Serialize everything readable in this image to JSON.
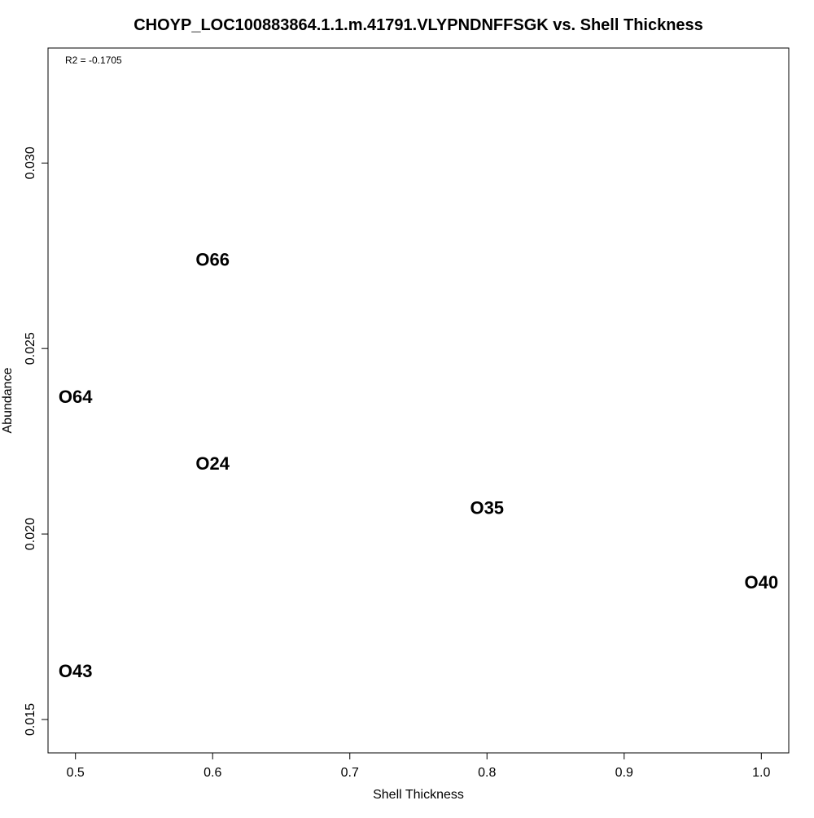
{
  "chart_data": {
    "type": "scatter",
    "title": "CHOYP_LOC100883864.1.1.m.41791.VLYPNDNFFSGK vs. Shell Thickness",
    "xlabel": "Shell Thickness",
    "ylabel": "Abundance",
    "xlim": [
      0.48,
      1.02
    ],
    "ylim": [
      0.0141,
      0.0331
    ],
    "xticks": [
      0.5,
      0.6,
      0.7,
      0.8,
      0.9,
      1.0
    ],
    "xtick_labels": [
      "0.5",
      "0.6",
      "0.7",
      "0.8",
      "0.9",
      "1.0"
    ],
    "yticks": [
      0.015,
      0.02,
      0.025,
      0.03
    ],
    "ytick_labels": [
      "0.015",
      "0.020",
      "0.025",
      "0.030"
    ],
    "grid": false,
    "annotation": "R2 = -0.1705",
    "points": [
      {
        "label": "O66",
        "x": 0.6,
        "y": 0.0274
      },
      {
        "label": "O64",
        "x": 0.5,
        "y": 0.0237
      },
      {
        "label": "O24",
        "x": 0.6,
        "y": 0.0219
      },
      {
        "label": "O35",
        "x": 0.8,
        "y": 0.0207
      },
      {
        "label": "O40",
        "x": 1.0,
        "y": 0.0187
      },
      {
        "label": "O43",
        "x": 0.5,
        "y": 0.0163
      }
    ]
  }
}
